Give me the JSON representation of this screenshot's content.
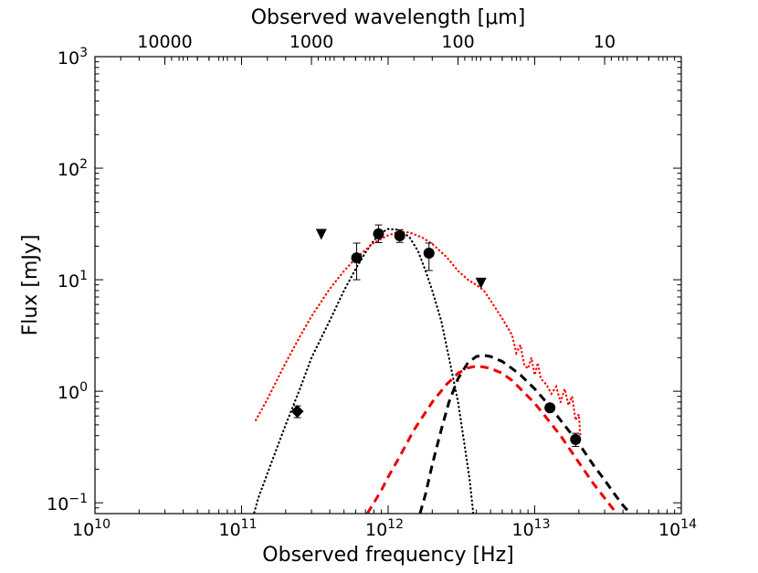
{
  "chart_data": {
    "type": "scatter",
    "x_scale": "log",
    "y_scale": "log",
    "xlabel": "Observed frequency [Hz]",
    "ylabel": "Flux [mJy]",
    "top_xlabel": "Observed wavelength [μm]",
    "xlim": [
      10000000000.0,
      100000000000000.0
    ],
    "ylim": [
      0.08,
      1000
    ],
    "grid": false,
    "x_ticks": [
      {
        "value": 10000000000.0,
        "base": "10",
        "exp": "10"
      },
      {
        "value": 100000000000.0,
        "base": "10",
        "exp": "11"
      },
      {
        "value": 1000000000000.0,
        "base": "10",
        "exp": "12"
      },
      {
        "value": 10000000000000.0,
        "base": "10",
        "exp": "13"
      },
      {
        "value": 100000000000000.0,
        "base": "10",
        "exp": "14"
      }
    ],
    "y_ticks": [
      {
        "value": 0.1,
        "base": "10",
        "exp": "−1"
      },
      {
        "value": 1,
        "base": "10",
        "exp": "0"
      },
      {
        "value": 10,
        "base": "10",
        "exp": "1"
      },
      {
        "value": 100,
        "base": "10",
        "exp": "2"
      },
      {
        "value": 1000,
        "base": "10",
        "exp": "3"
      }
    ],
    "top_ticks": [
      {
        "label": "10000",
        "wavelength_um": 10000
      },
      {
        "label": "1000",
        "wavelength_um": 1000
      },
      {
        "label": "100",
        "wavelength_um": 100
      },
      {
        "label": "10",
        "wavelength_um": 10
      }
    ],
    "detections": [
      {
        "x": 610000000000.0,
        "y": 15.7,
        "yerr_low": 5.7,
        "yerr_high": 5.6
      },
      {
        "x": 860000000000.0,
        "y": 25.8,
        "yerr_low": 4.3,
        "yerr_high": 5.2
      },
      {
        "x": 1200000000000.0,
        "y": 24.8,
        "yerr_low": 3.2,
        "yerr_high": 3.2
      },
      {
        "x": 1900000000000.0,
        "y": 17.3,
        "yerr_low": 5.2,
        "yerr_high": 4.0
      },
      {
        "x": 12700000000000.0,
        "y": 0.71,
        "yerr_low": 0.05,
        "yerr_high": 0.05
      },
      {
        "x": 19000000000000.0,
        "y": 0.37,
        "yerr_low": 0.05,
        "yerr_high": 0.05
      }
    ],
    "diamond_points": [
      {
        "x": 240000000000.0,
        "y": 0.66,
        "yerr_low": 0.08,
        "yerr_high": 0.08
      }
    ],
    "upper_limits": [
      {
        "x": 350000000000.0,
        "y": 25.5
      },
      {
        "x": 4300000000000.0,
        "y": 9.3
      }
    ],
    "models": [
      {
        "style": "dotted",
        "color": "#000000",
        "points": [
          [
            110000000000.0,
            0.05
          ],
          [
            130000000000.0,
            0.11
          ],
          [
            160000000000.0,
            0.23
          ],
          [
            200000000000.0,
            0.5
          ],
          [
            250000000000.0,
            1.05
          ],
          [
            300000000000.0,
            2.0
          ],
          [
            400000000000.0,
            4.3
          ],
          [
            500000000000.0,
            8.0
          ],
          [
            600000000000.0,
            12.5
          ],
          [
            700000000000.0,
            17.5
          ],
          [
            800000000000.0,
            22.5
          ],
          [
            900000000000.0,
            26.5
          ],
          [
            1000000000000.0,
            28.5
          ],
          [
            1200000000000.0,
            28
          ],
          [
            1400000000000.0,
            24
          ],
          [
            1600000000000.0,
            18
          ],
          [
            1800000000000.0,
            12
          ],
          [
            2000000000000.0,
            8.0
          ],
          [
            2300000000000.0,
            4.3
          ],
          [
            2600000000000.0,
            2.0
          ],
          [
            3000000000000.0,
            0.8
          ],
          [
            3300000000000.0,
            0.35
          ],
          [
            3600000000000.0,
            0.16
          ],
          [
            3900000000000.0,
            0.06
          ]
        ]
      },
      {
        "style": "dotted",
        "color": "#ff0000",
        "points": [
          [
            125000000000.0,
            0.55
          ],
          [
            150000000000.0,
            0.85
          ],
          [
            200000000000.0,
            1.8
          ],
          [
            250000000000.0,
            3.1
          ],
          [
            300000000000.0,
            4.7
          ],
          [
            400000000000.0,
            8.3
          ],
          [
            500000000000.0,
            12.0
          ],
          [
            600000000000.0,
            15.5
          ],
          [
            700000000000.0,
            18.5
          ],
          [
            800000000000.0,
            21.5
          ],
          [
            1000000000000.0,
            25
          ],
          [
            1200000000000.0,
            27
          ],
          [
            1400000000000.0,
            26.5
          ],
          [
            1700000000000.0,
            24
          ],
          [
            2000000000000.0,
            21
          ],
          [
            2500000000000.0,
            16
          ],
          [
            3000000000000.0,
            12
          ],
          [
            3500000000000.0,
            10
          ],
          [
            4000000000000.0,
            9.0
          ],
          [
            4500000000000.0,
            8.0
          ],
          [
            5000000000000.0,
            6.5
          ],
          [
            6000000000000.0,
            4.5
          ],
          [
            7000000000000.0,
            3.2
          ],
          [
            7500000000000.0,
            2.2
          ],
          [
            8000000000000.0,
            2.6
          ],
          [
            8500000000000.0,
            1.7
          ],
          [
            9000000000000.0,
            1.6
          ],
          [
            9500000000000.0,
            2.0
          ],
          [
            10000000000000.0,
            1.4
          ],
          [
            10500000000000.0,
            1.8
          ],
          [
            11000000000000.0,
            1.3
          ],
          [
            12000000000000.0,
            1.15
          ],
          [
            13000000000000.0,
            0.95
          ],
          [
            14000000000000.0,
            1.1
          ],
          [
            15000000000000.0,
            0.8
          ],
          [
            16000000000000.0,
            1.05
          ],
          [
            17000000000000.0,
            0.75
          ],
          [
            18000000000000.0,
            0.9
          ],
          [
            19000000000000.0,
            0.55
          ],
          [
            20000000000000.0,
            0.62
          ],
          [
            20500000000000.0,
            0.4
          ]
        ]
      },
      {
        "style": "dashed",
        "color": "#000000",
        "points": [
          [
            1650000000000.0,
            0.08
          ],
          [
            1800000000000.0,
            0.12
          ],
          [
            2000000000000.0,
            0.22
          ],
          [
            2300000000000.0,
            0.45
          ],
          [
            2600000000000.0,
            0.8
          ],
          [
            3000000000000.0,
            1.3
          ],
          [
            3500000000000.0,
            1.8
          ],
          [
            4000000000000.0,
            2.05
          ],
          [
            4500000000000.0,
            2.1
          ],
          [
            5000000000000.0,
            2.05
          ],
          [
            6000000000000.0,
            1.85
          ],
          [
            7000000000000.0,
            1.6
          ],
          [
            8000000000000.0,
            1.4
          ],
          [
            10000000000000.0,
            1.05
          ],
          [
            12000000000000.0,
            0.8
          ],
          [
            15000000000000.0,
            0.55
          ],
          [
            20000000000000.0,
            0.34
          ],
          [
            25000000000000.0,
            0.22
          ],
          [
            30000000000000.0,
            0.16
          ],
          [
            35000000000000.0,
            0.12
          ],
          [
            40000000000000.0,
            0.095
          ],
          [
            45000000000000.0,
            0.08
          ]
        ]
      },
      {
        "style": "dashed",
        "color": "#ee0000",
        "points": [
          [
            720000000000.0,
            0.08
          ],
          [
            800000000000.0,
            0.1
          ],
          [
            900000000000.0,
            0.13
          ],
          [
            1000000000000.0,
            0.17
          ],
          [
            1200000000000.0,
            0.26
          ],
          [
            1500000000000.0,
            0.45
          ],
          [
            2000000000000.0,
            0.8
          ],
          [
            2500000000000.0,
            1.15
          ],
          [
            3000000000000.0,
            1.45
          ],
          [
            3500000000000.0,
            1.62
          ],
          [
            4000000000000.0,
            1.68
          ],
          [
            4500000000000.0,
            1.65
          ],
          [
            5000000000000.0,
            1.6
          ],
          [
            6000000000000.0,
            1.45
          ],
          [
            7000000000000.0,
            1.25
          ],
          [
            8000000000000.0,
            1.05
          ],
          [
            10000000000000.0,
            0.78
          ],
          [
            12000000000000.0,
            0.58
          ],
          [
            15000000000000.0,
            0.4
          ],
          [
            20000000000000.0,
            0.23
          ],
          [
            25000000000000.0,
            0.15
          ],
          [
            30000000000000.0,
            0.11
          ],
          [
            35000000000000.0,
            0.085
          ],
          [
            38000000000000.0,
            0.075
          ]
        ]
      }
    ]
  }
}
